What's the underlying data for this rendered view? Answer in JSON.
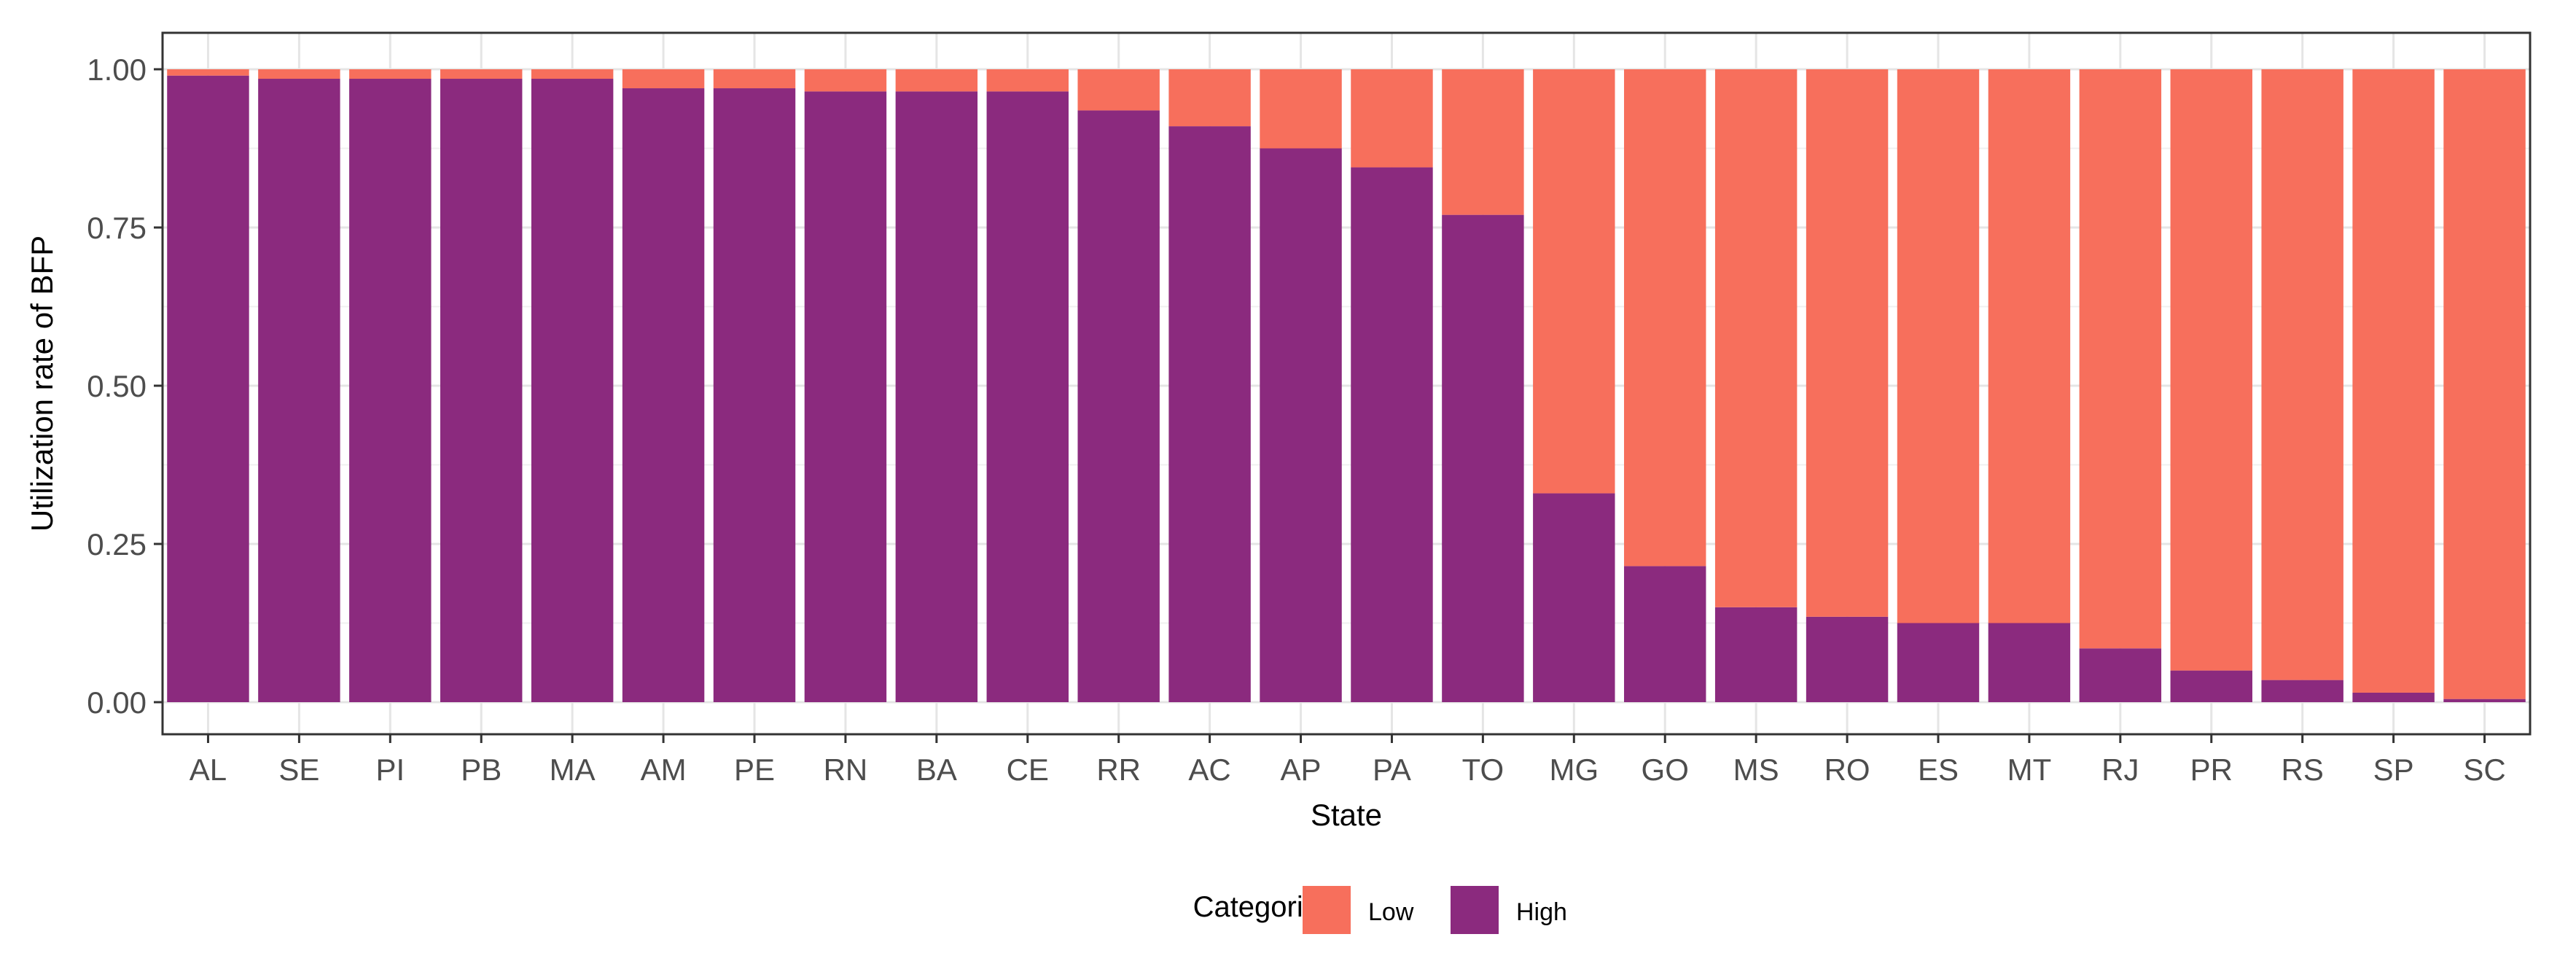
{
  "chart_data": {
    "type": "bar",
    "stacked": true,
    "xlabel": "State",
    "ylabel": "Utilization rate of BFP",
    "ylim": [
      0,
      1
    ],
    "yticks": [
      "0.00",
      "0.25",
      "0.50",
      "0.75",
      "1.00"
    ],
    "grid": true,
    "legend": {
      "title": "Categories",
      "placement": "bottom"
    },
    "categories": [
      "AL",
      "SE",
      "PI",
      "PB",
      "MA",
      "AM",
      "PE",
      "RN",
      "BA",
      "CE",
      "RR",
      "AC",
      "AP",
      "PA",
      "TO",
      "MG",
      "GO",
      "MS",
      "RO",
      "ES",
      "MT",
      "RJ",
      "PR",
      "RS",
      "SP",
      "SC"
    ],
    "series": [
      {
        "name": "High",
        "color": "#8B2A7E",
        "values": [
          0.99,
          0.985,
          0.985,
          0.985,
          0.985,
          0.97,
          0.97,
          0.965,
          0.965,
          0.965,
          0.935,
          0.91,
          0.875,
          0.845,
          0.77,
          0.33,
          0.215,
          0.15,
          0.135,
          0.125,
          0.125,
          0.085,
          0.05,
          0.035,
          0.015,
          0.005
        ]
      },
      {
        "name": "Low",
        "color": "#F76F5C",
        "values": [
          0.01,
          0.015,
          0.015,
          0.015,
          0.015,
          0.03,
          0.03,
          0.035,
          0.035,
          0.035,
          0.065,
          0.09,
          0.125,
          0.155,
          0.23,
          0.67,
          0.785,
          0.85,
          0.865,
          0.875,
          0.875,
          0.915,
          0.95,
          0.965,
          0.985,
          0.995
        ]
      }
    ]
  }
}
